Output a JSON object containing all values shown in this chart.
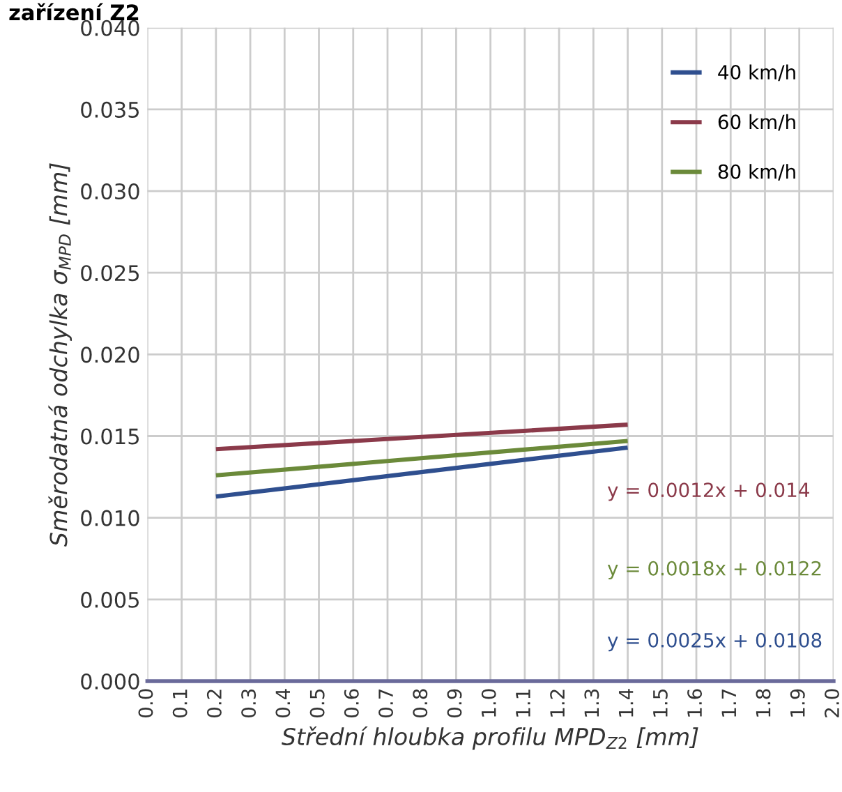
{
  "chart_data": {
    "type": "line",
    "title": "zařízení Z2",
    "xlabel": "Střední hloubka profilu MPD$_{Z2}$ [mm]",
    "ylabel": "Směrodatná odchylka σ$_{MPD}$ [mm]",
    "x": [
      0.2,
      1.4
    ],
    "series": [
      {
        "name": "40 km/h",
        "color": "#2f4f8f",
        "values": [
          0.0113,
          0.0143
        ]
      },
      {
        "name": "60 km/h",
        "color": "#8b3a4a",
        "values": [
          0.0142,
          0.0157
        ]
      },
      {
        "name": "80 km/h",
        "color": "#6b8a3a",
        "values": [
          0.0126,
          0.0147
        ]
      }
    ],
    "xlim": [
      0,
      2
    ],
    "xticks": [
      {
        "value": 0,
        "label": "0.0"
      },
      0.1,
      0.2,
      0.3,
      0.4,
      0.5,
      0.6,
      0.7,
      0.8,
      0.9,
      {
        "value": 1,
        "label": "1.0"
      },
      1.1,
      1.2,
      1.3,
      1.4,
      1.5,
      1.6,
      1.7,
      1.8,
      1.9,
      {
        "value": 2,
        "label": "2.0"
      }
    ],
    "ylim": [
      0,
      0.04
    ],
    "yticks": [
      {
        "value": 0,
        "label": "0.000"
      },
      {
        "value": 0.005,
        "label": "0.005"
      },
      {
        "value": 0.01,
        "label": "0.010"
      },
      {
        "value": 0.015,
        "label": "0.015"
      },
      {
        "value": 0.02,
        "label": "0.020"
      },
      {
        "value": 0.025,
        "label": "0.025"
      },
      {
        "value": 0.03,
        "label": "0.030"
      },
      {
        "value": 0.035,
        "label": "0.035"
      },
      {
        "value": 0.04,
        "label": "0.040"
      }
    ],
    "grid": true,
    "legend": "top right",
    "line_style": "solid",
    "marker": "none",
    "annotations": [
      "y = 0.0012x + 0.014",
      "y = 0.0018x + 0.0122",
      "y = 0.0025x + 0.0108"
    ]
  }
}
